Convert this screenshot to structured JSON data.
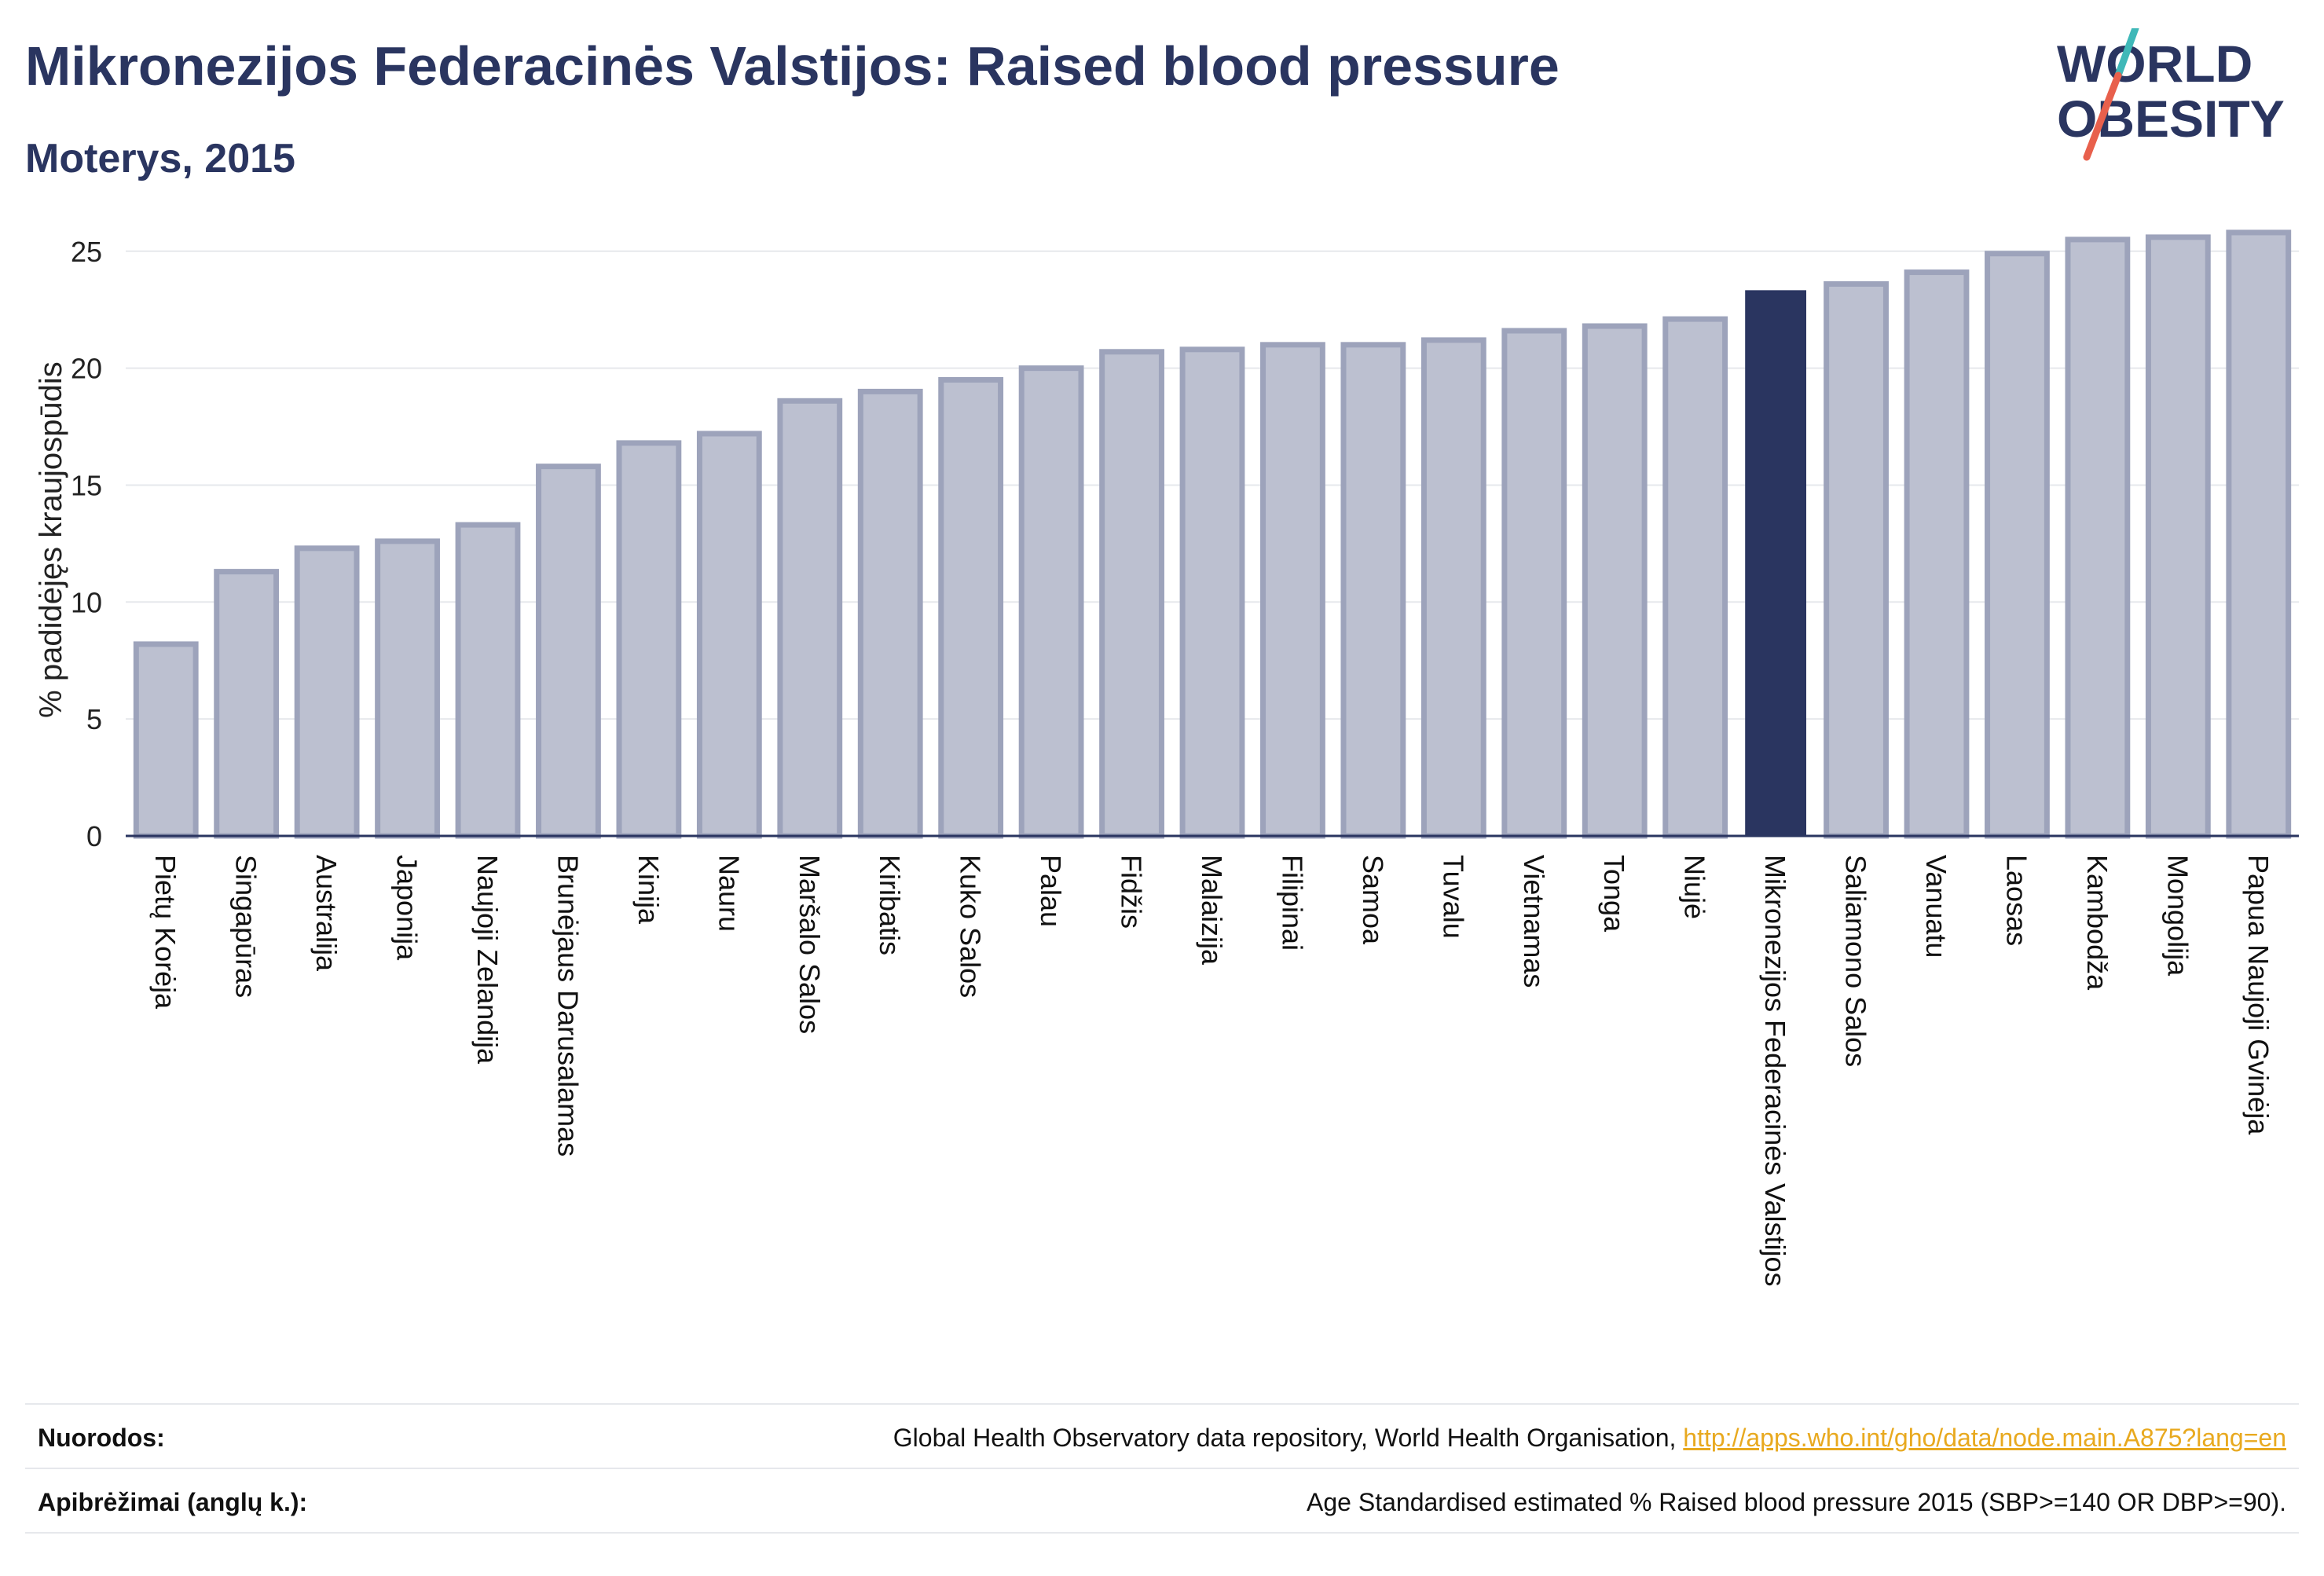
{
  "header": {
    "title": "Mikronezijos Federacinės Valstijos: Raised blood pressure",
    "subtitle": "Moterys, 2015"
  },
  "logo": {
    "line1": "WORLD",
    "line2": "OBESITY",
    "colors": {
      "text": "#2a3560",
      "slash_teal": "#3fb8b8",
      "slash_red": "#e8604c"
    }
  },
  "chart_data": {
    "type": "bar",
    "ylabel": "% padidėjęs kraujospūdis",
    "xlabel": "",
    "ylim": [
      0,
      26
    ],
    "yticks": [
      0,
      5,
      10,
      15,
      20,
      25
    ],
    "grid": true,
    "highlight_index": 20,
    "colors": {
      "bar": "#bcc0d0",
      "bar_border": "#9da3bb",
      "highlight": "#2a3560"
    },
    "categories": [
      "Pietų Korėja",
      "Singapūras",
      "Australija",
      "Japonija",
      "Naujoji Zelandija",
      "Brunėjaus Darusalamas",
      "Kinija",
      "Nauru",
      "Maršalo Salos",
      "Kiribatis",
      "Kuko Salos",
      "Palau",
      "Fidžis",
      "Malaizija",
      "Filipinai",
      "Samoa",
      "Tuvalu",
      "Vietnamas",
      "Tonga",
      "Niujė",
      "Mikronezijos Federacinės Valstijos",
      "Saliamono Salos",
      "Vanuatu",
      "Laosas",
      "Kambodža",
      "Mongolija",
      "Papua Naujoji Gvinėja"
    ],
    "values": [
      8.2,
      11.3,
      12.3,
      12.6,
      13.3,
      15.8,
      16.8,
      17.2,
      18.6,
      19.0,
      19.5,
      20.0,
      20.7,
      20.8,
      21.0,
      21.0,
      21.2,
      21.6,
      21.8,
      22.1,
      23.3,
      23.6,
      24.1,
      24.9,
      25.5,
      25.6,
      25.8
    ]
  },
  "footer": {
    "references_label": "Nuorodos:",
    "references_text": "Global Health Observatory data repository, World Health Organisation, ",
    "references_link": "http://apps.who.int/gho/data/node.main.A875?lang=en",
    "definitions_label": "Apibrėžimai (anglų k.):",
    "definitions_text": "Age Standardised estimated % Raised blood pressure 2015 (SBP>=140 OR DBP>=90)."
  }
}
